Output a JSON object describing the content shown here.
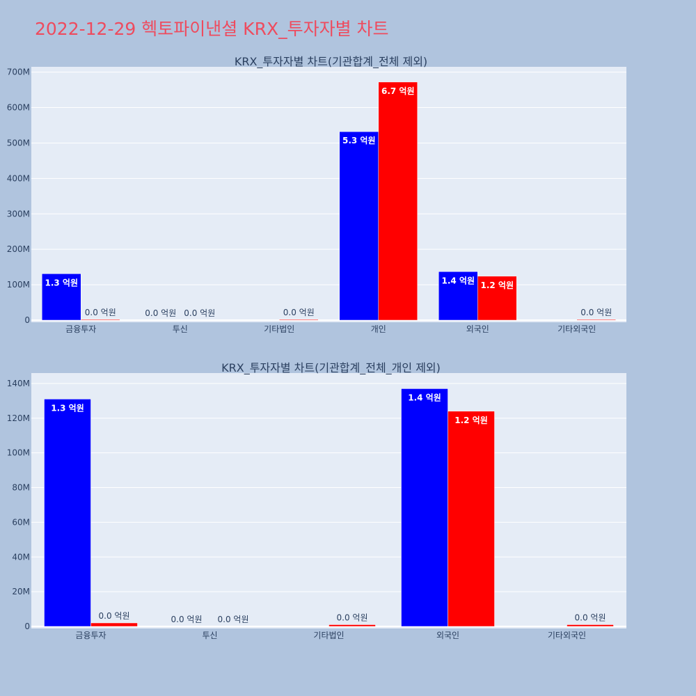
{
  "title": "2022-12-29 헥토파이낸셜 KRX_투자자별 차트",
  "colors": {
    "buy": "#0000ff",
    "sell": "#ff0000",
    "title": "#ee4b5e",
    "plot_bg": "#e5ecf6",
    "page_bg": "#b0c4de"
  },
  "chart_data": [
    {
      "type": "bar",
      "title": "KRX_투자자별 차트(기관합계_전체 제외)",
      "categories": [
        "금융투자",
        "투신",
        "기타법인",
        "개인",
        "외국인",
        "기타외국인"
      ],
      "series": [
        {
          "color": "#0000ff",
          "values": [
            131000000,
            0,
            0,
            532000000,
            137000000,
            0
          ],
          "labels": [
            "1.3 억원",
            "0.0 억원",
            "",
            "5.3 억원",
            "1.4 억원",
            ""
          ]
        },
        {
          "color": "#ff0000",
          "values": [
            2000000,
            0,
            1000000,
            672000000,
            124000000,
            1000000
          ],
          "labels": [
            "0.0 억원",
            "0.0 억원",
            "0.0 억원",
            "6.7 억원",
            "1.2 억원",
            "0.0 억원"
          ]
        }
      ],
      "ylim": [
        0,
        715000000
      ],
      "yticks": [
        0,
        100000000,
        200000000,
        300000000,
        400000000,
        500000000,
        600000000,
        700000000
      ],
      "ytick_labels": [
        "0",
        "100M",
        "200M",
        "300M",
        "400M",
        "500M",
        "600M",
        "700M"
      ],
      "grid": true
    },
    {
      "type": "bar",
      "title": "KRX_투자자별 차트(기관합계_전체_개인 제외)",
      "categories": [
        "금융투자",
        "투신",
        "기타법인",
        "외국인",
        "기타외국인"
      ],
      "series": [
        {
          "color": "#0000ff",
          "values": [
            131000000,
            0,
            0,
            137000000,
            0
          ],
          "labels": [
            "1.3 억원",
            "0.0 억원",
            "",
            "1.4 억원",
            ""
          ]
        },
        {
          "color": "#ff0000",
          "values": [
            2000000,
            0,
            1000000,
            124000000,
            1000000
          ],
          "labels": [
            "0.0 억원",
            "0.0 억원",
            "0.0 억원",
            "1.2 억원",
            "0.0 억원"
          ]
        }
      ],
      "ylim": [
        0,
        146000000
      ],
      "yticks": [
        0,
        20000000,
        40000000,
        60000000,
        80000000,
        100000000,
        120000000,
        140000000
      ],
      "ytick_labels": [
        "0",
        "20M",
        "40M",
        "60M",
        "80M",
        "100M",
        "120M",
        "140M"
      ],
      "grid": true
    }
  ]
}
